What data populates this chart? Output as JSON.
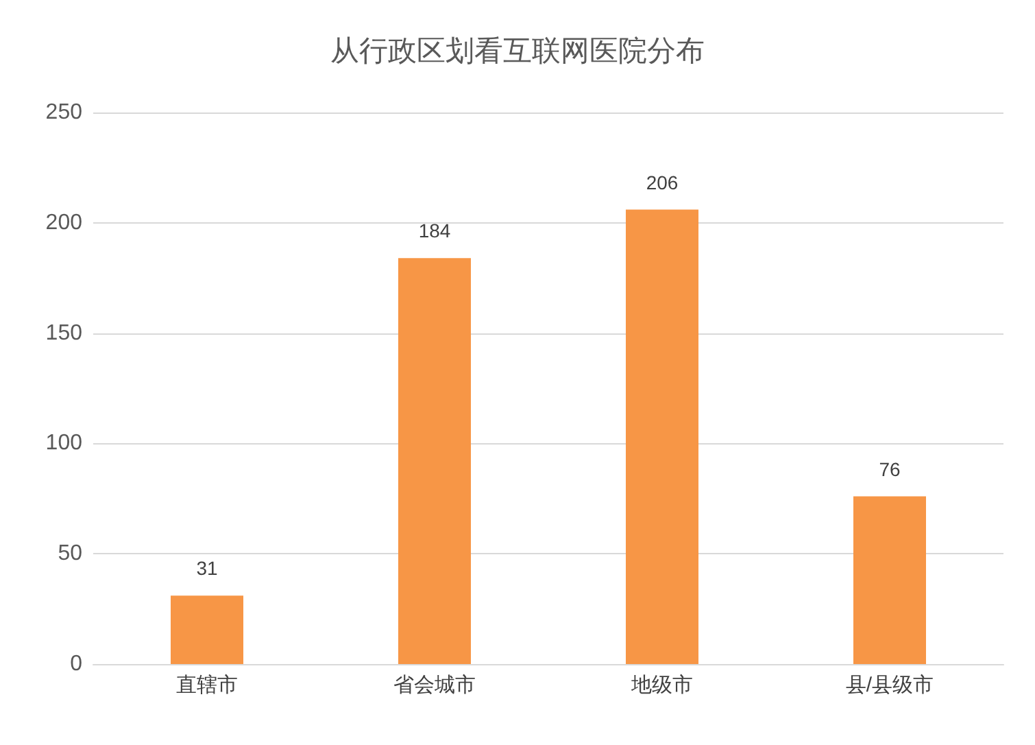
{
  "chart_data": {
    "type": "bar",
    "title": "从行政区划看互联网医院分布",
    "categories": [
      "直辖市",
      "省会城市",
      "地级市",
      "县/县级市"
    ],
    "values": [
      31,
      184,
      206,
      76
    ],
    "color": "#f79646",
    "ylim": [
      0,
      250
    ],
    "yticks": [
      0,
      50,
      100,
      150,
      200,
      250
    ],
    "grid": "y",
    "data_labels": true
  }
}
